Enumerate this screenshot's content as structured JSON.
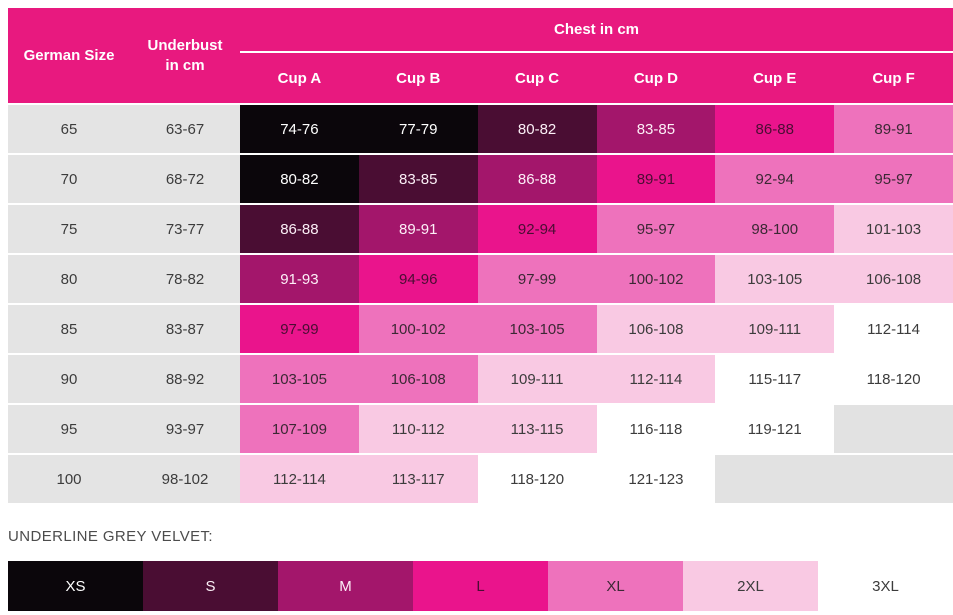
{
  "chart_data": {
    "type": "table",
    "header": {
      "german_size": "German Size",
      "underbust": "Underbust in cm",
      "chest_group": "Chest in cm",
      "cups": [
        {
          "label": "Cup A"
        },
        {
          "label": "Cup B"
        },
        {
          "label": "Cup C"
        },
        {
          "label": "Cup D"
        },
        {
          "label": "Cup E"
        },
        {
          "label": "Cup F"
        }
      ]
    },
    "rows": [
      {
        "size": "65",
        "underbust": "63-67",
        "cups": [
          {
            "text": "74-76",
            "tone": "black"
          },
          {
            "text": "77-79",
            "tone": "black"
          },
          {
            "text": "80-82",
            "tone": "plum"
          },
          {
            "text": "83-85",
            "tone": "magenta"
          },
          {
            "text": "86-88",
            "tone": "hotpink"
          },
          {
            "text": "89-91",
            "tone": "pink"
          }
        ]
      },
      {
        "size": "70",
        "underbust": "68-72",
        "cups": [
          {
            "text": "80-82",
            "tone": "black"
          },
          {
            "text": "83-85",
            "tone": "plum"
          },
          {
            "text": "86-88",
            "tone": "magenta"
          },
          {
            "text": "89-91",
            "tone": "hotpink"
          },
          {
            "text": "92-94",
            "tone": "pink"
          },
          {
            "text": "95-97",
            "tone": "pink"
          }
        ]
      },
      {
        "size": "75",
        "underbust": "73-77",
        "cups": [
          {
            "text": "86-88",
            "tone": "plum"
          },
          {
            "text": "89-91",
            "tone": "magenta"
          },
          {
            "text": "92-94",
            "tone": "hotpink"
          },
          {
            "text": "95-97",
            "tone": "pink"
          },
          {
            "text": "98-100",
            "tone": "pink"
          },
          {
            "text": "101-103",
            "tone": "palepink"
          }
        ]
      },
      {
        "size": "80",
        "underbust": "78-82",
        "cups": [
          {
            "text": "91-93",
            "tone": "magenta"
          },
          {
            "text": "94-96",
            "tone": "hotpink"
          },
          {
            "text": "97-99",
            "tone": "pink"
          },
          {
            "text": "100-102",
            "tone": "pink"
          },
          {
            "text": "103-105",
            "tone": "palepink"
          },
          {
            "text": "106-108",
            "tone": "palepink"
          }
        ]
      },
      {
        "size": "85",
        "underbust": "83-87",
        "cups": [
          {
            "text": "97-99",
            "tone": "hotpink"
          },
          {
            "text": "100-102",
            "tone": "pink"
          },
          {
            "text": "103-105",
            "tone": "pink"
          },
          {
            "text": "106-108",
            "tone": "palepink"
          },
          {
            "text": "109-111",
            "tone": "palepink"
          },
          {
            "text": "112-114",
            "tone": "white"
          }
        ]
      },
      {
        "size": "90",
        "underbust": "88-92",
        "cups": [
          {
            "text": "103-105",
            "tone": "pink"
          },
          {
            "text": "106-108",
            "tone": "pink"
          },
          {
            "text": "109-111",
            "tone": "palepink"
          },
          {
            "text": "112-114",
            "tone": "palepink"
          },
          {
            "text": "115-117",
            "tone": "white"
          },
          {
            "text": "118-120",
            "tone": "white"
          }
        ]
      },
      {
        "size": "95",
        "underbust": "93-97",
        "cups": [
          {
            "text": "107-109",
            "tone": "pink"
          },
          {
            "text": "110-112",
            "tone": "palepink"
          },
          {
            "text": "113-115",
            "tone": "palepink"
          },
          {
            "text": "116-118",
            "tone": "white"
          },
          {
            "text": "119-121",
            "tone": "white"
          },
          {
            "text": "",
            "tone": "empty"
          }
        ]
      },
      {
        "size": "100",
        "underbust": "98-102",
        "cups": [
          {
            "text": "112-114",
            "tone": "palepink"
          },
          {
            "text": "113-117",
            "tone": "palepink"
          },
          {
            "text": "118-120",
            "tone": "white"
          },
          {
            "text": "121-123",
            "tone": "white"
          },
          {
            "text": "",
            "tone": "empty"
          },
          {
            "text": "",
            "tone": "empty"
          }
        ]
      }
    ],
    "legend": {
      "label": "UNDERLINE GREY VELVET:",
      "sizes": [
        {
          "text": "XS",
          "tone": "black"
        },
        {
          "text": "S",
          "tone": "plum"
        },
        {
          "text": "M",
          "tone": "magenta"
        },
        {
          "text": "L",
          "tone": "hotpink"
        },
        {
          "text": "XL",
          "tone": "pink"
        },
        {
          "text": "2XL",
          "tone": "palepink"
        },
        {
          "text": "3XL",
          "tone": "white"
        }
      ]
    },
    "colors": {
      "header_pink": "#E8197F",
      "band_black": "#0B060B",
      "band_plum": "#4A0D33",
      "band_magenta": "#A3166B",
      "band_hotpink": "#EA148C",
      "band_pink": "#EE72BC",
      "band_palepink": "#F9C9E3",
      "band_white": "#FFFFFF",
      "empty_gray": "#E2E2E2",
      "label_column_gray": "#E4E4E4",
      "text_dark": "#3C3C3C"
    }
  }
}
